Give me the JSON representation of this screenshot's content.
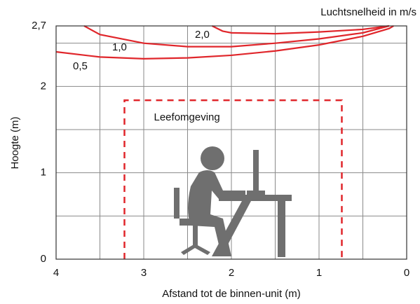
{
  "chart_data": {
    "type": "line",
    "annotation": "Luchtsnelheid in m/s",
    "xlabel": "Afstand tot de binnen-unit (m)",
    "ylabel": "Hoogte (m)",
    "xlim": [
      4,
      0
    ],
    "ylim": [
      0,
      2.7
    ],
    "xticks": [
      4,
      3,
      2,
      1,
      0
    ],
    "yticks": [
      0,
      1,
      2,
      {
        "value": 2.7,
        "label": "2,7"
      }
    ],
    "xgrid": [
      3.5,
      2.5,
      1.5,
      0.5
    ],
    "ygrid": [
      0.5,
      1.5,
      2.5
    ],
    "grid": true,
    "series": [
      {
        "name": "0,5",
        "color": "#e0262b",
        "x": [
          4,
          3.5,
          3,
          2.5,
          2,
          1.5,
          1,
          0.5,
          0.2,
          0.15
        ],
        "values": [
          2.4,
          2.34,
          2.32,
          2.33,
          2.36,
          2.41,
          2.48,
          2.58,
          2.67,
          2.7
        ]
      },
      {
        "name": "1,0",
        "color": "#e0262b",
        "x": [
          3.68,
          3.5,
          3,
          2.5,
          2,
          1.5,
          1,
          0.5,
          0.2
        ],
        "values": [
          2.7,
          2.6,
          2.5,
          2.46,
          2.46,
          2.5,
          2.55,
          2.62,
          2.7
        ]
      },
      {
        "name": "2,0",
        "color": "#e0262b",
        "x": [
          2.22,
          2.1,
          2,
          1.5,
          1,
          0.5,
          0.2
        ],
        "values": [
          2.7,
          2.64,
          2.62,
          2.61,
          2.63,
          2.66,
          2.7
        ]
      }
    ],
    "zone": {
      "label": "Leefomgeving",
      "color": "#e0262b",
      "x": [
        3.22,
        0.74
      ],
      "y": [
        0,
        1.84
      ]
    }
  }
}
